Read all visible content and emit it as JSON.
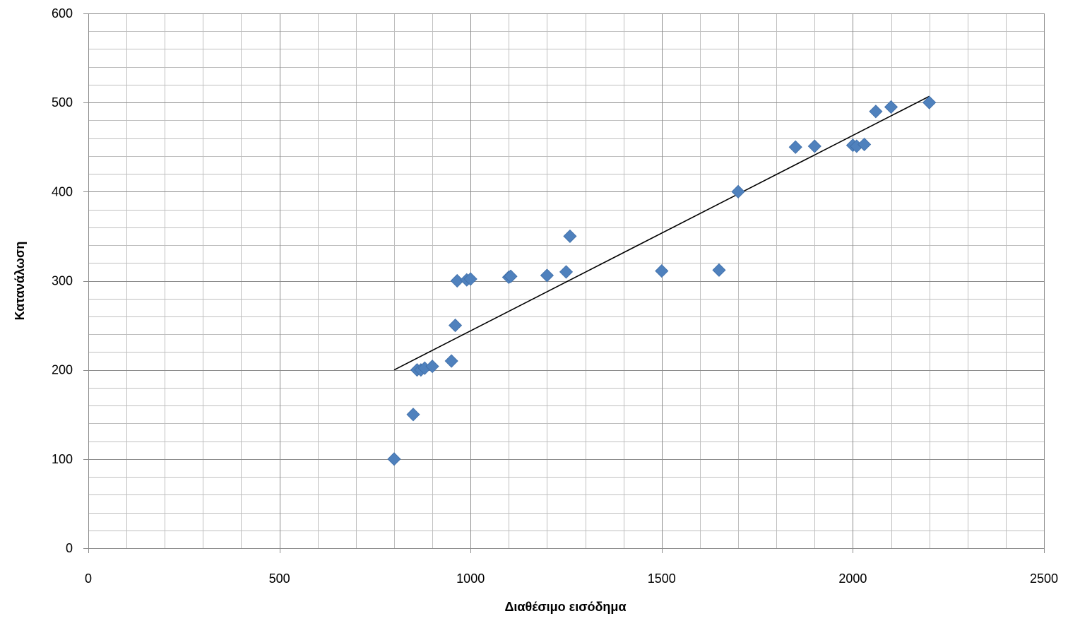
{
  "chart_data": {
    "type": "scatter",
    "xlabel": "Διαθέσιμο εισόδημα",
    "ylabel": "Κατανάλωση",
    "xlim": [
      0,
      2500
    ],
    "ylim": [
      0,
      600
    ],
    "x_ticks": [
      0,
      500,
      1000,
      1500,
      2000,
      2500
    ],
    "y_ticks": [
      0,
      100,
      200,
      300,
      400,
      500,
      600
    ],
    "x_tick_labels": [
      "0",
      "500",
      "1000",
      "1500",
      "2000",
      "2500"
    ],
    "y_tick_labels": [
      "0",
      "100",
      "200",
      "300",
      "400",
      "500",
      "600"
    ],
    "x_minor_step": 100,
    "y_minor_step": 20,
    "grid": true,
    "legend": "none",
    "marker": "diamond",
    "marker_color": "#4F81BD",
    "grid_major_color": "#8C8C8C",
    "grid_minor_color": "#BFBFBF",
    "trendline_color": "#000000",
    "series": [
      {
        "points": [
          {
            "x": 800,
            "y": 100
          },
          {
            "x": 850,
            "y": 150
          },
          {
            "x": 860,
            "y": 200
          },
          {
            "x": 870,
            "y": 200
          },
          {
            "x": 880,
            "y": 202
          },
          {
            "x": 900,
            "y": 204
          },
          {
            "x": 950,
            "y": 210
          },
          {
            "x": 960,
            "y": 250
          },
          {
            "x": 965,
            "y": 300
          },
          {
            "x": 990,
            "y": 301
          },
          {
            "x": 1000,
            "y": 302
          },
          {
            "x": 1100,
            "y": 304
          },
          {
            "x": 1105,
            "y": 305
          },
          {
            "x": 1200,
            "y": 306
          },
          {
            "x": 1250,
            "y": 310
          },
          {
            "x": 1260,
            "y": 350
          },
          {
            "x": 1500,
            "y": 311
          },
          {
            "x": 1650,
            "y": 312
          },
          {
            "x": 1700,
            "y": 400
          },
          {
            "x": 1850,
            "y": 450
          },
          {
            "x": 1900,
            "y": 451
          },
          {
            "x": 2000,
            "y": 452
          },
          {
            "x": 2010,
            "y": 451
          },
          {
            "x": 2030,
            "y": 453
          },
          {
            "x": 2060,
            "y": 490
          },
          {
            "x": 2100,
            "y": 495
          },
          {
            "x": 2200,
            "y": 500
          }
        ]
      }
    ],
    "trendline": {
      "x1": 800,
      "y1": 200,
      "x2": 2200,
      "y2": 507
    }
  }
}
